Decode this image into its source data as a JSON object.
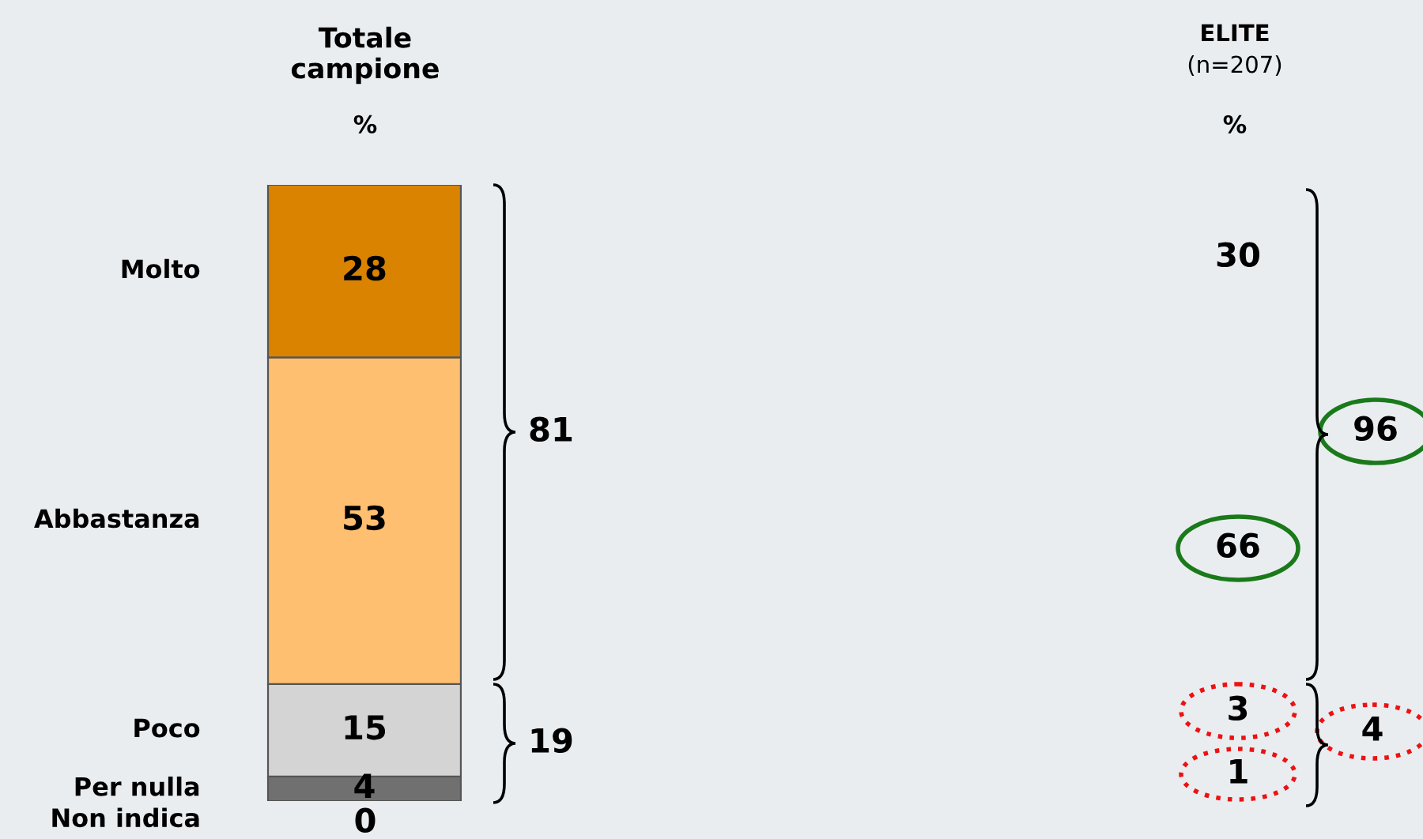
{
  "chart_data": [
    {
      "type": "bar",
      "title": "Totale\ncampione",
      "subtitle": "%",
      "categories": [
        null
      ],
      "stacked": true,
      "data_labels": true,
      "annotations": [
        "81",
        "19",
        "Non indica",
        "0"
      ],
      "series": [
        {
          "name": "Per nulla",
          "color": "#707070",
          "values": [
            4
          ]
        },
        {
          "name": "Poco",
          "color": "#d4d4d4",
          "values": [
            15
          ]
        },
        {
          "name": "Abbastanza",
          "color": "#ffbf70",
          "values": [
            53
          ]
        },
        {
          "name": "Molto",
          "color": "#d98300",
          "values": [
            28
          ]
        }
      ],
      "ylim": [
        0,
        100
      ]
    },
    {
      "type": "other",
      "title": "ELITE",
      "subtitle": "(n=207)",
      "annotations": [
        "%",
        "30",
        "66",
        "3",
        "1",
        "96",
        "4"
      ]
    }
  ]
}
